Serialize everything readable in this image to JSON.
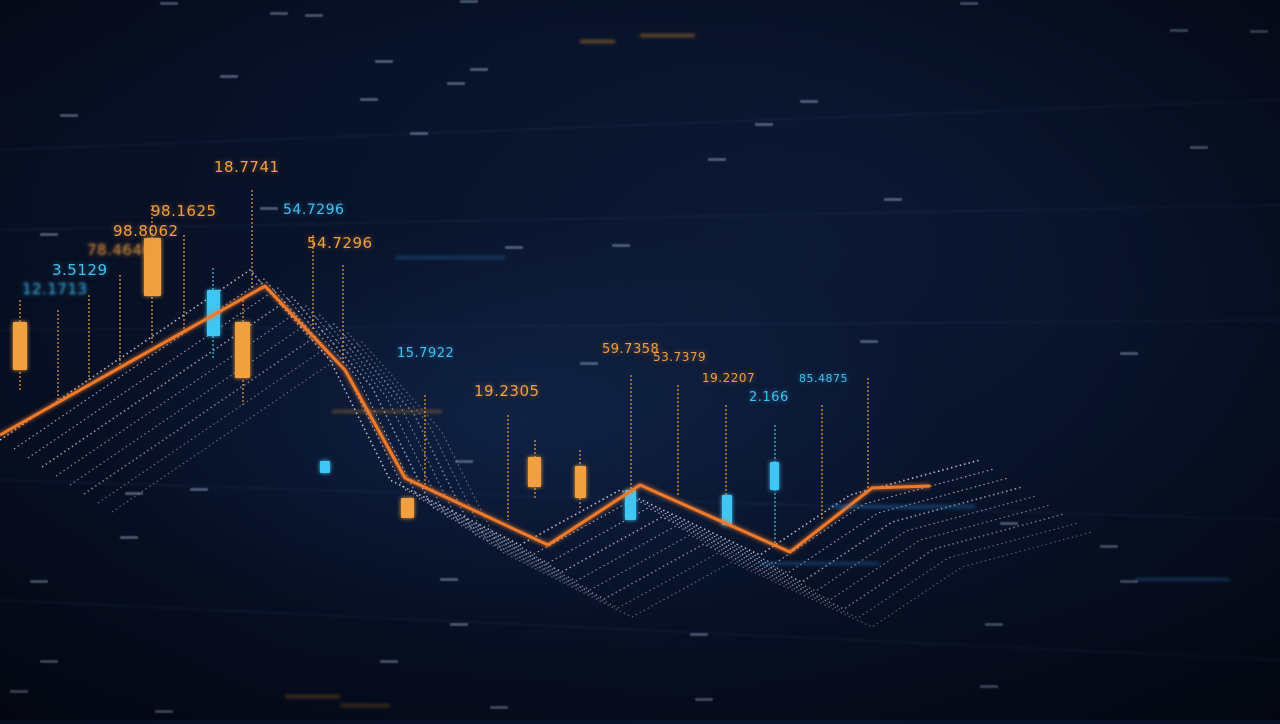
{
  "labels": [
    {
      "text": "18.7741",
      "color": "orange"
    },
    {
      "text": "98.1625",
      "color": "orange"
    },
    {
      "text": "98.8062",
      "color": "orange"
    },
    {
      "text": "78.4646",
      "color": "orange"
    },
    {
      "text": "54.7296",
      "color": "cyan"
    },
    {
      "text": "54.7296",
      "color": "orange"
    },
    {
      "text": "3.5129",
      "color": "cyan"
    },
    {
      "text": "12.1713",
      "color": "cyan"
    },
    {
      "text": "15.7922",
      "color": "cyan"
    },
    {
      "text": "19.2305",
      "color": "orange"
    },
    {
      "text": "59.7358",
      "color": "orange"
    },
    {
      "text": "53.7379",
      "color": "orange"
    },
    {
      "text": "19.2207",
      "color": "orange"
    },
    {
      "text": "2.166",
      "color": "cyan"
    },
    {
      "text": "85.4875",
      "color": "cyan"
    }
  ],
  "colors": {
    "background": "#081229",
    "orange": "#f0a040",
    "cyan": "#43c1ee",
    "grid": "#cfd8ea"
  }
}
